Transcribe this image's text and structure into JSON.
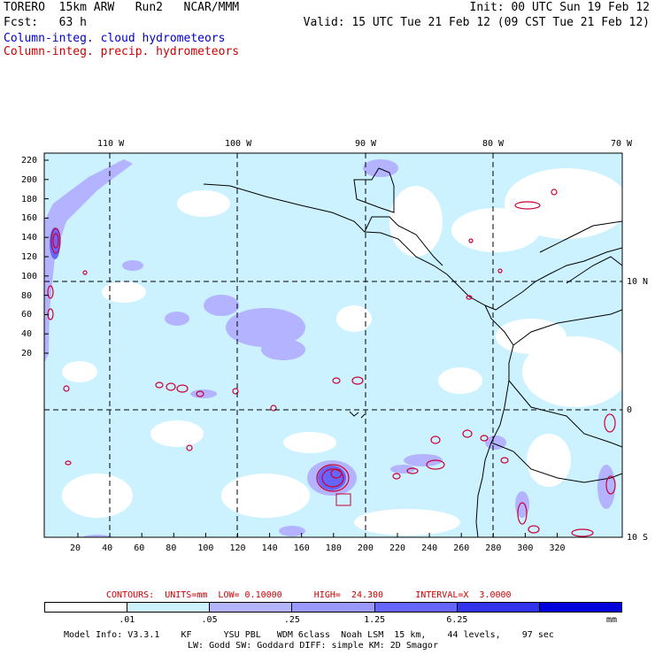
{
  "header": {
    "line1_left": "TORERO  15km ARW   Run2   NCAR/MMM",
    "line1_right": "Init: 00 UTC Sun 19 Feb 12",
    "line2_left": "Fcst:   63 h",
    "line2_right": "Valid: 15 UTC Tue 21 Feb 12 (09 CST Tue 21 Feb 12)",
    "field_cloud": "Column-integ. cloud hydrometeors",
    "field_precip": "Column-integ. precip. hydrometeors"
  },
  "map": {
    "lon_labels": [
      "110 W",
      "100 W",
      "90 W",
      "80 W",
      "70 W"
    ],
    "lat_labels": [
      "10 N",
      "0",
      "10 S"
    ],
    "y_ticks": [
      "220",
      "200",
      "180",
      "160",
      "140",
      "120",
      "100",
      "80",
      "60",
      "40",
      "20"
    ],
    "x_ticks": [
      "20",
      "40",
      "60",
      "80",
      "100",
      "120",
      "140",
      "160",
      "180",
      "200",
      "220",
      "240",
      "260",
      "280",
      "300",
      "320"
    ],
    "cloud_color": "#9999ff",
    "light_color": "#ccf2ff",
    "precip_contour_color": "#cc0033"
  },
  "contours_info": "CONTOURS:  UNITS=mm  LOW= 0.10000      HIGH=  24.300      INTERVAL=X  3.0000",
  "colorbar": {
    "labels": [
      ".01",
      ".05",
      ".25",
      "1.25",
      "6.25",
      "mm"
    ],
    "colors": [
      "#ffffff",
      "#ccf2ff",
      "#b3b3ff",
      "#9999ff",
      "#6666ff",
      "#3333ee",
      "#0000dd"
    ]
  },
  "model_info": {
    "line1": "Model Info: V3.3.1    KF      YSU PBL   WDM 6class  Noah LSM  15 km,    44 levels,    97 sec",
    "line2": "LW: Godd SW: Goddard DIFF: simple KM: 2D Smagor"
  }
}
